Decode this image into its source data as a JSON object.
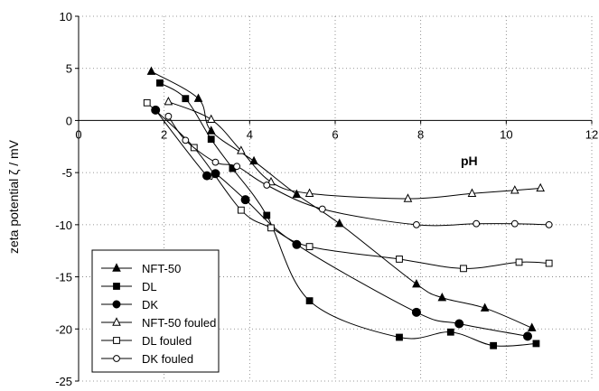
{
  "chart_data": {
    "type": "line",
    "title": "",
    "xlabel": "pH",
    "ylabel": "zeta potential  ζ / mV",
    "xlim": [
      0,
      12
    ],
    "ylim": [
      -25,
      10
    ],
    "xticks": [
      0,
      2,
      4,
      6,
      8,
      10,
      12
    ],
    "yticks": [
      10,
      5,
      0,
      -5,
      -10,
      -15,
      -20,
      -25
    ],
    "grid": true,
    "legend_position": "bottom-left",
    "series": [
      {
        "name": "NFT-50",
        "marker": "triangle",
        "filled": true,
        "x": [
          1.7,
          2.8,
          3.1,
          4.1,
          5.1,
          6.1,
          7.9,
          8.5,
          9.5,
          10.6
        ],
        "y": [
          4.7,
          2.1,
          -1.0,
          -3.9,
          -7.1,
          -9.9,
          -15.7,
          -17.0,
          -18.0,
          -19.9
        ]
      },
      {
        "name": "DL",
        "marker": "square",
        "filled": true,
        "x": [
          1.9,
          2.5,
          3.1,
          3.6,
          4.4,
          5.4,
          7.5,
          8.7,
          9.7,
          10.7
        ],
        "y": [
          3.6,
          2.1,
          -1.8,
          -4.6,
          -9.1,
          -17.3,
          -20.8,
          -20.3,
          -21.6,
          -21.4
        ]
      },
      {
        "name": "DK",
        "marker": "circle",
        "filled": true,
        "x": [
          1.8,
          3.0,
          3.2,
          3.9,
          5.1,
          7.9,
          8.9,
          10.5
        ],
        "y": [
          1.0,
          -5.3,
          -5.1,
          -7.6,
          -11.9,
          -18.4,
          -19.5,
          -20.7
        ]
      },
      {
        "name": "NFT-50 fouled",
        "marker": "triangle",
        "filled": false,
        "x": [
          2.1,
          3.1,
          3.8,
          4.5,
          5.4,
          7.7,
          9.2,
          10.2,
          10.8
        ],
        "y": [
          1.8,
          0.1,
          -2.9,
          -5.9,
          -7.0,
          -7.5,
          -7.0,
          -6.7,
          -6.5
        ]
      },
      {
        "name": "DL fouled",
        "marker": "square",
        "filled": false,
        "x": [
          1.6,
          2.7,
          3.8,
          4.5,
          5.4,
          7.5,
          9.0,
          10.3,
          11.0
        ],
        "y": [
          1.7,
          -2.6,
          -8.6,
          -10.3,
          -12.1,
          -13.3,
          -14.2,
          -13.6,
          -13.7
        ]
      },
      {
        "name": "DK fouled",
        "marker": "circle",
        "filled": false,
        "x": [
          2.1,
          2.5,
          3.2,
          3.7,
          4.4,
          5.7,
          7.9,
          9.3,
          10.2,
          11.0
        ],
        "y": [
          0.4,
          -1.9,
          -4.0,
          -4.4,
          -6.2,
          -8.5,
          -10.0,
          -9.9,
          -9.9,
          -10.0
        ]
      }
    ]
  }
}
